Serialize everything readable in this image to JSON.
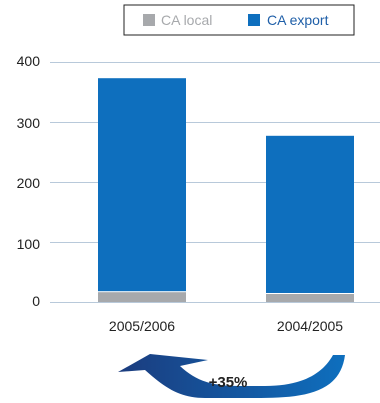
{
  "chart_data": {
    "type": "bar",
    "stacked": true,
    "categories": [
      "2005/2006",
      "2004/2005"
    ],
    "series": [
      {
        "name": "CA local",
        "values": [
          18,
          15
        ],
        "color": "#a7a9ac"
      },
      {
        "name": "CA export",
        "values": [
          355,
          262
        ],
        "color": "#0e6fbe"
      }
    ],
    "ylim": [
      0,
      400
    ],
    "yticks": [
      "0",
      "100",
      "200",
      "300",
      "400"
    ],
    "legend_position": "top-right",
    "grid": true
  },
  "annotation": {
    "growth_label": "+35%",
    "arrow_icon": "curved-arrow-icon",
    "arrow_colors": [
      "#0e6fbe",
      "#1a3a7a"
    ]
  }
}
